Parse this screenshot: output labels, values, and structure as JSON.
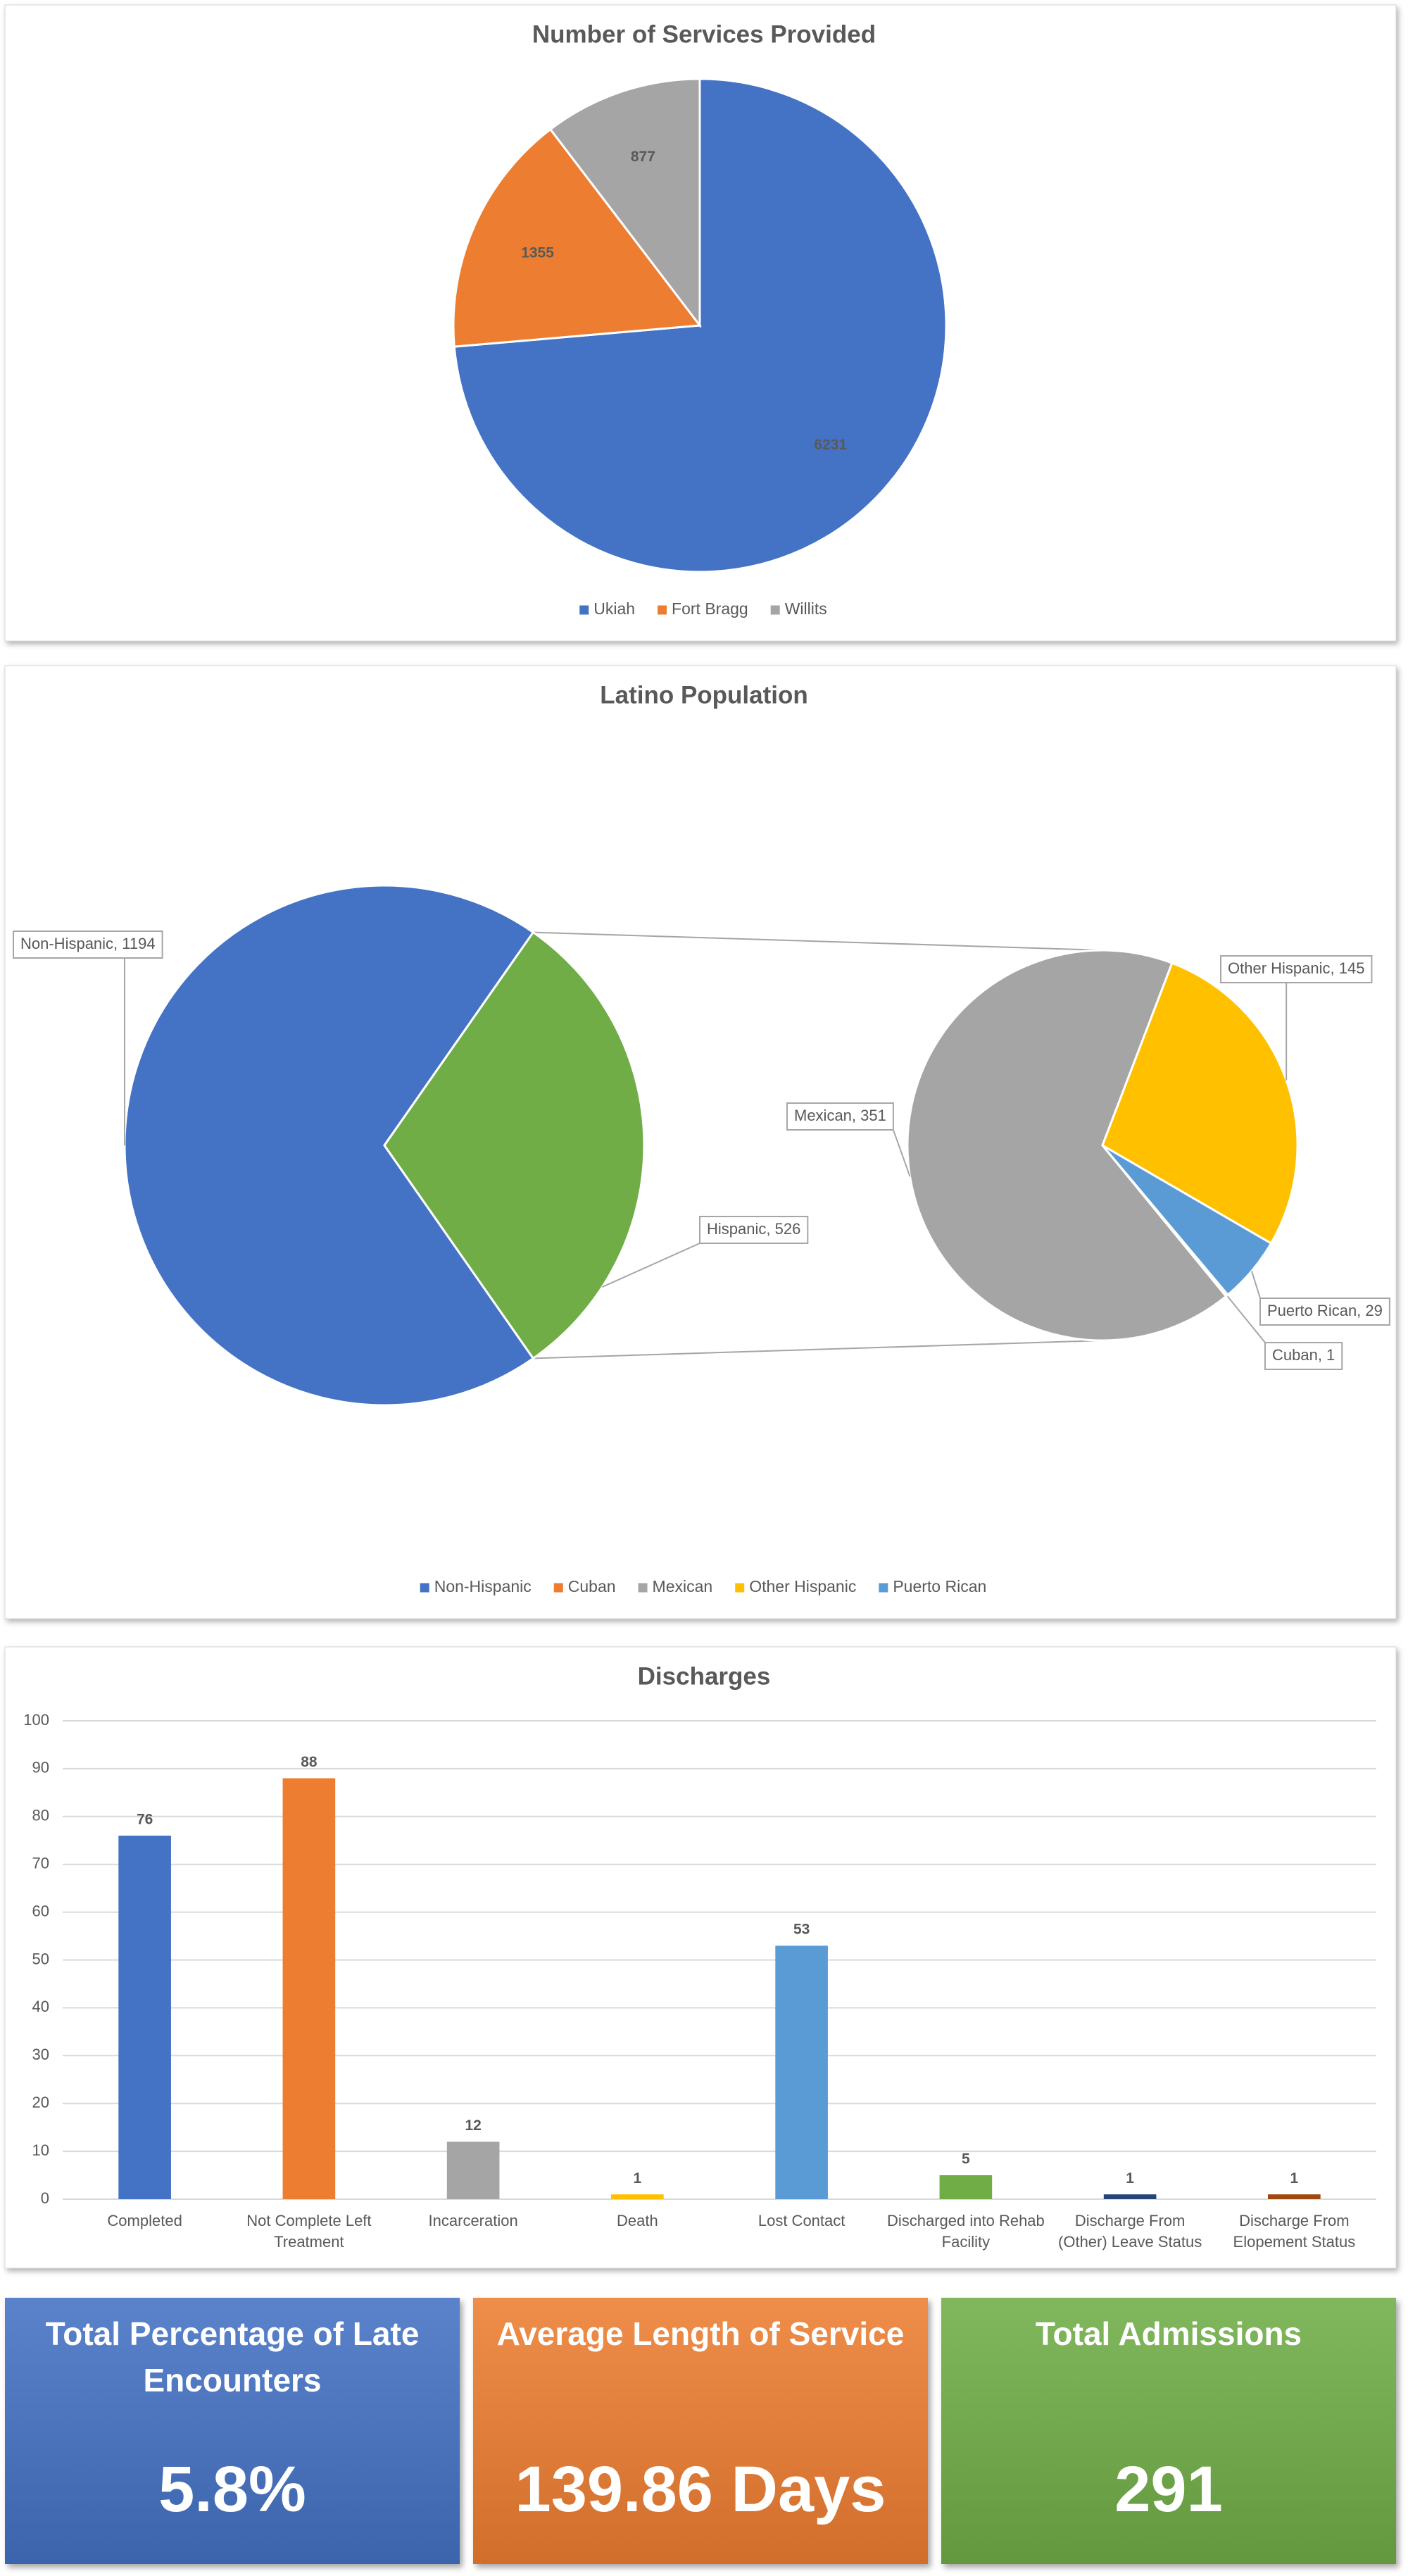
{
  "chart_data": [
    {
      "type": "pie",
      "title": "Number of Services Provided",
      "categories": [
        "Ukiah",
        "Fort Bragg",
        "Willits"
      ],
      "values": [
        6231,
        1355,
        877
      ],
      "colors": [
        "#4472c4",
        "#ed7d31",
        "#a5a5a5"
      ],
      "legend": "bottom"
    },
    {
      "type": "pie_of_pie",
      "title": "Latino Population",
      "categories": [
        "Non-Hispanic",
        "Cuban",
        "Mexican",
        "Other Hispanic",
        "Puerto Rican"
      ],
      "values": [
        1194,
        1,
        351,
        145,
        29
      ],
      "value_labels": [
        "Non-Hispanic, 1194",
        "Cuban, 1",
        "Mexican, 351",
        "Other Hispanic, 145",
        "Puerto Rican, 29"
      ],
      "colors": [
        "#4472c4",
        "#ed7d31",
        "#a5a5a5",
        "#ffc000",
        "#5b9bd5"
      ],
      "other": {
        "value": 526,
        "value_label": "Hispanic, 526",
        "color": "#70ad47"
      },
      "legend": "bottom"
    },
    {
      "type": "bar",
      "title": "Discharges",
      "categories": [
        "Completed",
        "Not Complete Left Treatment",
        "Incarceration",
        "Death",
        "Lost Contact",
        "Discharged into Rehab Facility",
        "Discharge From (Other) Leave Status",
        "Discharge From Elopement Status"
      ],
      "values": [
        76,
        88,
        12,
        1,
        53,
        5,
        1,
        1
      ],
      "colors": [
        "#4472c4",
        "#ed7d31",
        "#a5a5a5",
        "#ffc000",
        "#5b9bd5",
        "#70ad47",
        "#264478",
        "#9e480e"
      ],
      "ylim": [
        0,
        100
      ],
      "yticks": [
        0,
        10,
        20,
        30,
        40,
        50,
        60,
        70,
        80,
        90,
        100
      ],
      "grid": true
    }
  ],
  "tiles": [
    {
      "title": "Total Percentage of Late Encounters",
      "value": "5.8%",
      "color": "#4472c4"
    },
    {
      "title": "Average Length of Service",
      "value": "139.86 Days",
      "color": "#ed7d31"
    },
    {
      "title": "Total Admissions",
      "value": "291",
      "color": "#70ad47"
    }
  ]
}
